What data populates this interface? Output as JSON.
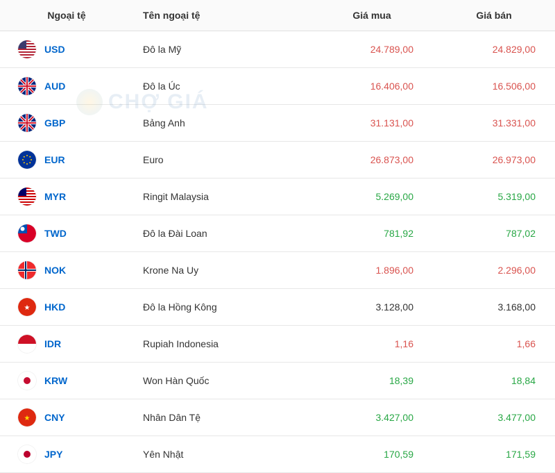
{
  "headers": {
    "currency": "Ngoại tệ",
    "name": "Tên ngoại tệ",
    "buy": "Giá mua",
    "sell": "Giá bán"
  },
  "watermark": {
    "text": "CHỢ GIÁ"
  },
  "colors": {
    "up": "#d9534f",
    "down": "#28a745",
    "neutral": "#333333",
    "link": "#0066cc",
    "border": "#e7e7e7",
    "header_bg": "#fafafa"
  },
  "rows": [
    {
      "code": "USD",
      "name": "Đô la Mỹ",
      "buy": "24.789,00",
      "sell": "24.829,00",
      "buy_trend": "up",
      "sell_trend": "up",
      "flag": "usd"
    },
    {
      "code": "AUD",
      "name": "Đô la Úc",
      "buy": "16.406,00",
      "sell": "16.506,00",
      "buy_trend": "up",
      "sell_trend": "up",
      "flag": "aud"
    },
    {
      "code": "GBP",
      "name": "Bảng Anh",
      "buy": "31.131,00",
      "sell": "31.331,00",
      "buy_trend": "up",
      "sell_trend": "up",
      "flag": "gbp"
    },
    {
      "code": "EUR",
      "name": "Euro",
      "buy": "26.873,00",
      "sell": "26.973,00",
      "buy_trend": "up",
      "sell_trend": "up",
      "flag": "eur"
    },
    {
      "code": "MYR",
      "name": "Ringit Malaysia",
      "buy": "5.269,00",
      "sell": "5.319,00",
      "buy_trend": "down",
      "sell_trend": "down",
      "flag": "myr"
    },
    {
      "code": "TWD",
      "name": "Đô la Đài Loan",
      "buy": "781,92",
      "sell": "787,02",
      "buy_trend": "down",
      "sell_trend": "down",
      "flag": "twd"
    },
    {
      "code": "NOK",
      "name": "Krone Na Uy",
      "buy": "1.896,00",
      "sell": "2.296,00",
      "buy_trend": "up",
      "sell_trend": "up",
      "flag": "nok"
    },
    {
      "code": "HKD",
      "name": "Đô la Hồng Kông",
      "buy": "3.128,00",
      "sell": "3.168,00",
      "buy_trend": "neutral",
      "sell_trend": "neutral",
      "flag": "hkd"
    },
    {
      "code": "IDR",
      "name": "Rupiah Indonesia",
      "buy": "1,16",
      "sell": "1,66",
      "buy_trend": "up",
      "sell_trend": "up",
      "flag": "idr"
    },
    {
      "code": "KRW",
      "name": "Won Hàn Quốc",
      "buy": "18,39",
      "sell": "18,84",
      "buy_trend": "down",
      "sell_trend": "down",
      "flag": "krw"
    },
    {
      "code": "CNY",
      "name": "Nhân Dân Tệ",
      "buy": "3.427,00",
      "sell": "3.477,00",
      "buy_trend": "down",
      "sell_trend": "down",
      "flag": "cny"
    },
    {
      "code": "JPY",
      "name": "Yên Nhật",
      "buy": "170,59",
      "sell": "171,59",
      "buy_trend": "down",
      "sell_trend": "down",
      "flag": "jpy"
    }
  ],
  "flag_style": {
    "usd": {
      "bg": "#b22234",
      "detail": "#3c3b6e"
    },
    "aud": {
      "bg": "#00247d",
      "detail": "#cf142b"
    },
    "gbp": {
      "bg": "#00247d",
      "detail": "#cf142b"
    },
    "eur": {
      "bg": "#003399",
      "detail": "#ffcc00"
    },
    "myr": {
      "bg": "#cc0001",
      "detail": "#010066"
    },
    "twd": {
      "bg": "#d80027",
      "detail": "#0052b4"
    },
    "nok": {
      "bg": "#ef2b2d",
      "detail": "#002868"
    },
    "hkd": {
      "bg": "#de2910",
      "detail": "#ffffff"
    },
    "idr": {
      "bg": "#ce1126",
      "detail": "#ffffff"
    },
    "krw": {
      "bg": "#ffffff",
      "detail": "#c60c30"
    },
    "cny": {
      "bg": "#de2910",
      "detail": "#ffde00"
    },
    "jpy": {
      "bg": "#ffffff",
      "detail": "#bc002d"
    }
  }
}
